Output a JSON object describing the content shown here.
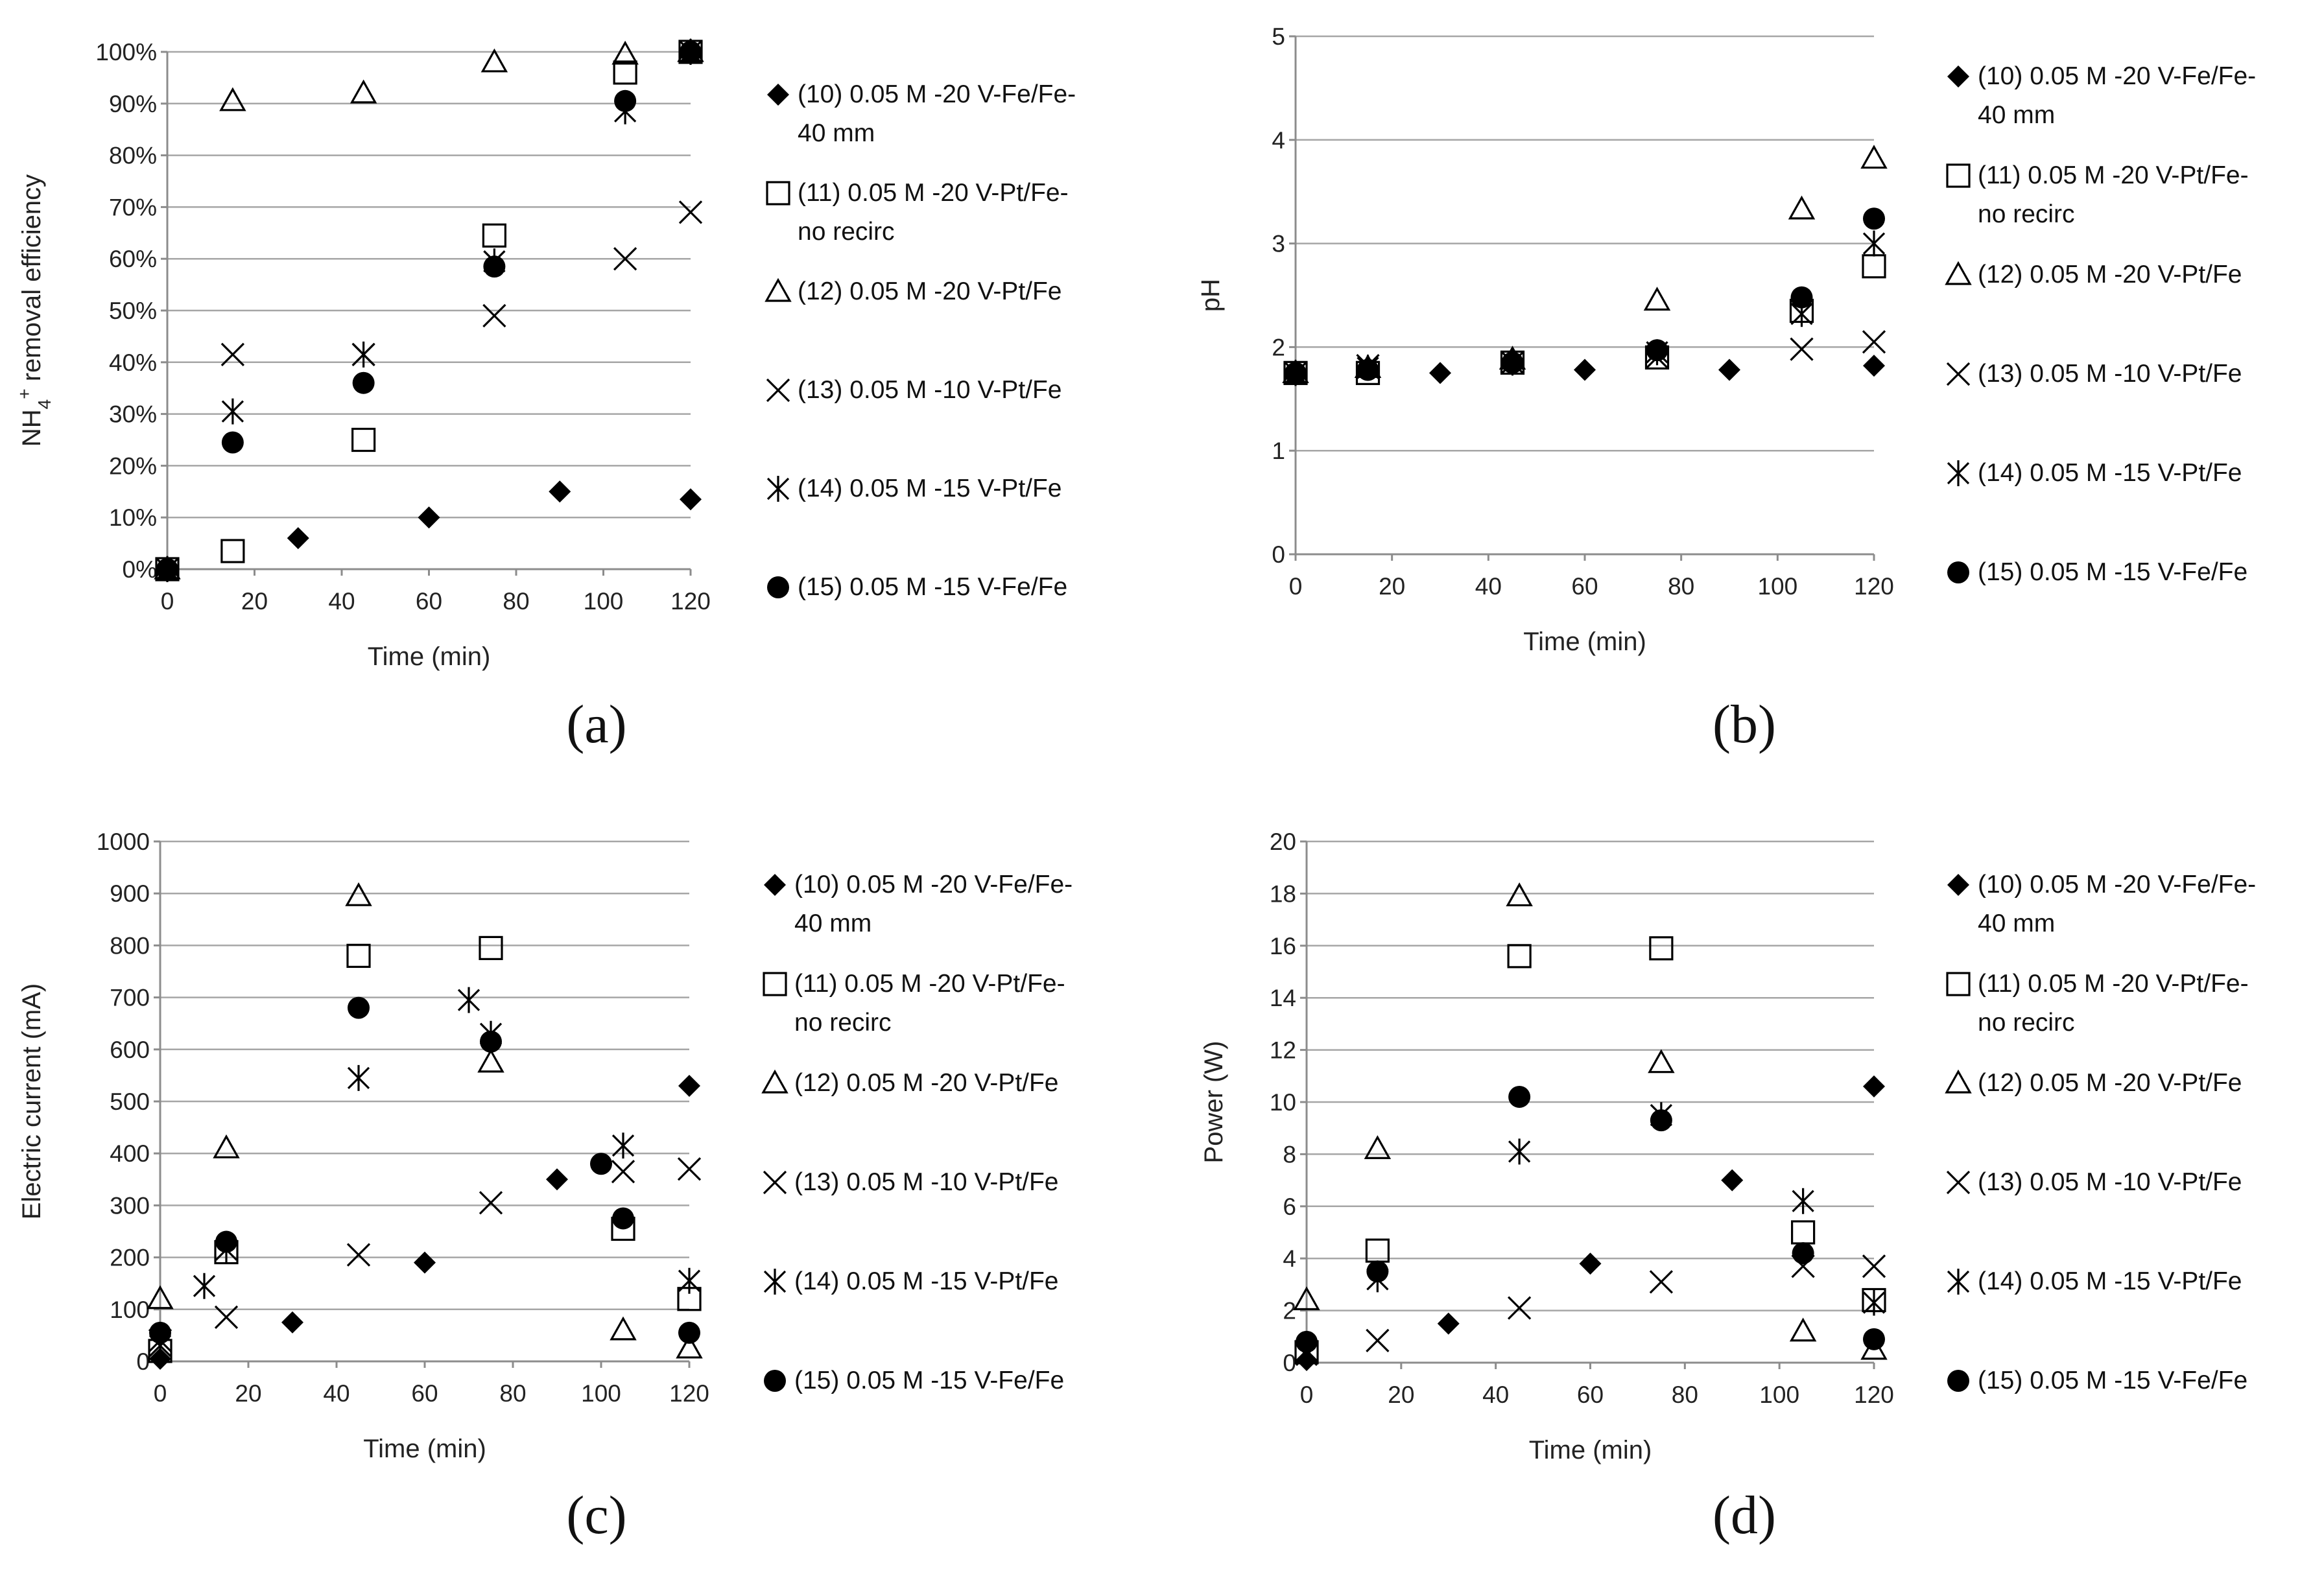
{
  "series_legend": [
    {
      "id": "s10",
      "marker": "diamond",
      "lines": [
        "(10) 0.05 M -20 V-Fe/Fe-",
        "40 mm"
      ]
    },
    {
      "id": "s11",
      "marker": "square-open",
      "lines": [
        "(11) 0.05 M -20 V-Pt/Fe-",
        "no recirc"
      ]
    },
    {
      "id": "s12",
      "marker": "triangle-open",
      "lines": [
        "(12) 0.05 M -20 V-Pt/Fe"
      ]
    },
    {
      "id": "s13",
      "marker": "x",
      "lines": [
        "(13) 0.05 M -10 V-Pt/Fe"
      ]
    },
    {
      "id": "s14",
      "marker": "asterisk",
      "lines": [
        "(14) 0.05 M -15 V-Pt/Fe"
      ]
    },
    {
      "id": "s15",
      "marker": "circle",
      "lines": [
        "(15) 0.05 M -15 V-Fe/Fe"
      ]
    }
  ],
  "colors": {
    "marker": "#000000",
    "grid": "#a6a6a6",
    "axis": "#8c8c8c"
  },
  "chart_data": [
    {
      "panel": "a",
      "caption": "(a)",
      "type": "scatter",
      "xlabel": "Time (min)",
      "ylabel_main": "NH",
      "ylabel_sub": "4",
      "ylabel_sup": "+",
      "ylabel_rest": " removal efficiency",
      "xlim": [
        0,
        120
      ],
      "ylim": [
        0,
        100
      ],
      "xticks": [
        0,
        20,
        40,
        60,
        80,
        100,
        120
      ],
      "xtick_labels": [
        "0",
        "20",
        "40",
        "60",
        "80",
        "100",
        "120"
      ],
      "yticks": [
        0,
        10,
        20,
        30,
        40,
        50,
        60,
        70,
        80,
        90,
        100
      ],
      "ytick_labels": [
        "0%",
        "10%",
        "20%",
        "30%",
        "40%",
        "50%",
        "60%",
        "70%",
        "80%",
        "90%",
        "100%"
      ],
      "series": [
        {
          "id": "s10",
          "points": [
            [
              0,
              0
            ],
            [
              30,
              6
            ],
            [
              60,
              10
            ],
            [
              90,
              15
            ],
            [
              120,
              13.5
            ]
          ]
        },
        {
          "id": "s11",
          "points": [
            [
              0,
              0
            ],
            [
              15,
              3.5
            ],
            [
              45,
              25
            ],
            [
              75,
              64.5
            ],
            [
              105,
              96
            ],
            [
              120,
              100
            ]
          ]
        },
        {
          "id": "s12",
          "points": [
            [
              0,
              0
            ],
            [
              15,
              90.5
            ],
            [
              45,
              92
            ],
            [
              75,
              98
            ],
            [
              105,
              99.5
            ],
            [
              120,
              100
            ]
          ]
        },
        {
          "id": "s13",
          "points": [
            [
              0,
              0
            ],
            [
              15,
              41.5
            ],
            [
              45,
              41.5
            ],
            [
              75,
              49
            ],
            [
              105,
              60
            ],
            [
              120,
              69
            ]
          ]
        },
        {
          "id": "s14",
          "points": [
            [
              0,
              0
            ],
            [
              15,
              30.5
            ],
            [
              45,
              41.5
            ],
            [
              75,
              59.5
            ],
            [
              105,
              88.5
            ],
            [
              120,
              100
            ]
          ]
        },
        {
          "id": "s15",
          "points": [
            [
              0,
              0
            ],
            [
              15,
              24.5
            ],
            [
              45,
              36
            ],
            [
              75,
              58.5
            ],
            [
              105,
              90.5
            ],
            [
              120,
              100
            ]
          ]
        }
      ]
    },
    {
      "panel": "b",
      "caption": "(b)",
      "type": "scatter",
      "xlabel": "Time (min)",
      "ylabel_main": "pH",
      "xlim": [
        0,
        120
      ],
      "ylim": [
        0,
        5
      ],
      "xticks": [
        0,
        20,
        40,
        60,
        80,
        100,
        120
      ],
      "xtick_labels": [
        "0",
        "20",
        "40",
        "60",
        "80",
        "100",
        "120"
      ],
      "yticks": [
        0,
        1,
        2,
        3,
        4,
        5
      ],
      "ytick_labels": [
        "0",
        "1",
        "2",
        "3",
        "4",
        "5"
      ],
      "series": [
        {
          "id": "s10",
          "points": [
            [
              0,
              1.75
            ],
            [
              15,
              1.78
            ],
            [
              30,
              1.75
            ],
            [
              45,
              1.85
            ],
            [
              60,
              1.78
            ],
            [
              90,
              1.78
            ],
            [
              120,
              1.82
            ]
          ]
        },
        {
          "id": "s11",
          "points": [
            [
              0,
              1.75
            ],
            [
              15,
              1.75
            ],
            [
              45,
              1.85
            ],
            [
              75,
              1.9
            ],
            [
              105,
              2.35
            ],
            [
              120,
              2.78
            ]
          ]
        },
        {
          "id": "s12",
          "points": [
            [
              0,
              1.75
            ],
            [
              15,
              1.8
            ],
            [
              45,
              1.88
            ],
            [
              75,
              2.45
            ],
            [
              105,
              3.33
            ],
            [
              120,
              3.82
            ]
          ]
        },
        {
          "id": "s13",
          "points": [
            [
              0,
              1.75
            ],
            [
              15,
              1.82
            ],
            [
              45,
              1.85
            ],
            [
              75,
              1.9
            ],
            [
              105,
              1.98
            ],
            [
              120,
              2.05
            ]
          ]
        },
        {
          "id": "s14",
          "points": [
            [
              0,
              1.75
            ],
            [
              15,
              1.8
            ],
            [
              45,
              1.85
            ],
            [
              75,
              1.95
            ],
            [
              105,
              2.32
            ],
            [
              120,
              3.0
            ]
          ]
        },
        {
          "id": "s15",
          "points": [
            [
              0,
              1.75
            ],
            [
              15,
              1.78
            ],
            [
              45,
              1.85
            ],
            [
              75,
              1.97
            ],
            [
              105,
              2.48
            ],
            [
              120,
              3.24
            ]
          ]
        }
      ]
    },
    {
      "panel": "c",
      "caption": "(c)",
      "type": "scatter",
      "xlabel": "Time (min)",
      "ylabel_main": "Electric current (mA)",
      "xlim": [
        0,
        120
      ],
      "ylim": [
        0,
        1000
      ],
      "xticks": [
        0,
        20,
        40,
        60,
        80,
        100,
        120
      ],
      "xtick_labels": [
        "0",
        "20",
        "40",
        "60",
        "80",
        "100",
        "120"
      ],
      "yticks": [
        0,
        100,
        200,
        300,
        400,
        500,
        600,
        700,
        800,
        900,
        1000
      ],
      "ytick_labels": [
        "0",
        "100",
        "200",
        "300",
        "400",
        "500",
        "600",
        "700",
        "800",
        "900",
        "1000"
      ],
      "series": [
        {
          "id": "s10",
          "points": [
            [
              0,
              5
            ],
            [
              30,
              75
            ],
            [
              60,
              190
            ],
            [
              90,
              350
            ],
            [
              120,
              530
            ]
          ]
        },
        {
          "id": "s11",
          "points": [
            [
              0,
              20
            ],
            [
              15,
              210
            ],
            [
              45,
              780
            ],
            [
              75,
              795
            ],
            [
              105,
              255
            ],
            [
              120,
              120
            ]
          ]
        },
        {
          "id": "s12",
          "points": [
            [
              0,
              120
            ],
            [
              15,
              410
            ],
            [
              45,
              895
            ],
            [
              75,
              575
            ],
            [
              105,
              60
            ],
            [
              120,
              25
            ]
          ]
        },
        {
          "id": "s13",
          "points": [
            [
              0,
              40
            ],
            [
              15,
              85
            ],
            [
              45,
              205
            ],
            [
              75,
              305
            ],
            [
              105,
              365
            ],
            [
              120,
              370
            ]
          ]
        },
        {
          "id": "s14",
          "points": [
            [
              0,
              30
            ],
            [
              10,
              145
            ],
            [
              15,
              215
            ],
            [
              45,
              545
            ],
            [
              70,
              695
            ],
            [
              75,
              630
            ],
            [
              105,
              415
            ],
            [
              120,
              155
            ]
          ]
        },
        {
          "id": "s15",
          "points": [
            [
              0,
              55
            ],
            [
              15,
              230
            ],
            [
              45,
              680
            ],
            [
              75,
              615
            ],
            [
              100,
              380
            ],
            [
              105,
              275
            ],
            [
              120,
              55
            ]
          ]
        }
      ]
    },
    {
      "panel": "d",
      "caption": "(d)",
      "type": "scatter",
      "xlabel": "Time (min)",
      "ylabel_main": "Power (W)",
      "xlim": [
        0,
        120
      ],
      "ylim": [
        0,
        20
      ],
      "xticks": [
        0,
        20,
        40,
        60,
        80,
        100,
        120
      ],
      "xtick_labels": [
        "0",
        "20",
        "40",
        "60",
        "80",
        "100",
        "120"
      ],
      "yticks": [
        0,
        2,
        4,
        6,
        8,
        10,
        12,
        14,
        16,
        18,
        20
      ],
      "ytick_labels": [
        "0",
        "2",
        "4",
        "6",
        "8",
        "10",
        "12",
        "14",
        "16",
        "18",
        "20"
      ],
      "series": [
        {
          "id": "s10",
          "points": [
            [
              0,
              0.1
            ],
            [
              30,
              1.5
            ],
            [
              60,
              3.8
            ],
            [
              90,
              7.0
            ],
            [
              120,
              10.6
            ]
          ]
        },
        {
          "id": "s11",
          "points": [
            [
              0,
              0.4
            ],
            [
              15,
              4.3
            ],
            [
              45,
              15.6
            ],
            [
              75,
              15.9
            ],
            [
              105,
              5.0
            ],
            [
              120,
              2.4
            ]
          ]
        },
        {
          "id": "s12",
          "points": [
            [
              0,
              2.4
            ],
            [
              15,
              8.2
            ],
            [
              45,
              17.9
            ],
            [
              75,
              11.5
            ],
            [
              105,
              1.2
            ],
            [
              120,
              0.5
            ]
          ]
        },
        {
          "id": "s13",
          "points": [
            [
              0,
              0.4
            ],
            [
              15,
              0.85
            ],
            [
              45,
              2.1
            ],
            [
              75,
              3.1
            ],
            [
              105,
              3.7
            ],
            [
              120,
              3.7
            ]
          ]
        },
        {
          "id": "s14",
          "points": [
            [
              0,
              0.3
            ],
            [
              15,
              3.2
            ],
            [
              45,
              8.1
            ],
            [
              75,
              9.5
            ],
            [
              105,
              6.2
            ],
            [
              120,
              2.3
            ]
          ]
        },
        {
          "id": "s15",
          "points": [
            [
              0,
              0.8
            ],
            [
              15,
              3.5
            ],
            [
              45,
              10.2
            ],
            [
              75,
              9.3
            ],
            [
              105,
              4.2
            ],
            [
              120,
              0.9
            ]
          ]
        }
      ]
    }
  ]
}
